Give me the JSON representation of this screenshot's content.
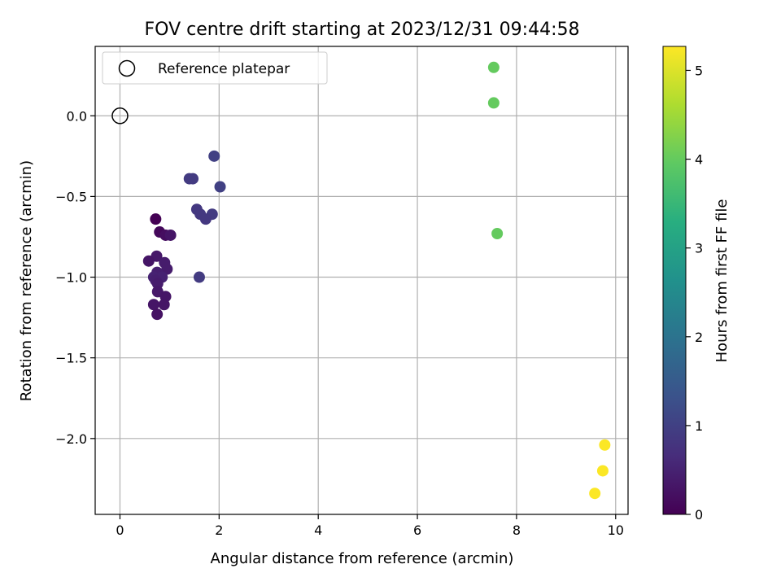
{
  "chart_data": {
    "type": "scatter",
    "title": "FOV centre drift starting at 2023/12/31 09:44:58",
    "xlabel": "Angular distance from reference (arcmin)",
    "ylabel": "Rotation from reference (arcmin)",
    "xlim": [
      -0.5,
      10.25
    ],
    "ylim": [
      -2.47,
      0.43
    ],
    "xticks": [
      0,
      2,
      4,
      6,
      8,
      10
    ],
    "yticks": [
      0.0,
      -0.5,
      -1.0,
      -1.5,
      -2.0
    ],
    "ytick_labels": [
      "0.0",
      "−0.5",
      "−1.0",
      "−1.5",
      "−2.0"
    ],
    "xtick_labels": [
      "0",
      "2",
      "4",
      "6",
      "8",
      "10"
    ],
    "grid": true,
    "legend": {
      "placement": "top-left",
      "entries": [
        {
          "label": "Reference platepar",
          "marker": "open-circle",
          "color": "#000000"
        }
      ]
    },
    "reference_point": {
      "x": 0.0,
      "y": 0.0
    },
    "colorbar": {
      "label": "Hours from first FF file",
      "colormap": "viridis",
      "min": 0,
      "max": 5.27,
      "ticks": [
        0,
        1,
        2,
        3,
        4,
        5
      ],
      "tick_labels": [
        "0",
        "1",
        "2",
        "3",
        "4",
        "5"
      ]
    },
    "points": [
      {
        "x": 0.72,
        "y": -0.64,
        "hours": 0.0
      },
      {
        "x": 0.8,
        "y": -0.72,
        "hours": 0.1
      },
      {
        "x": 0.92,
        "y": -0.74,
        "hours": 0.2
      },
      {
        "x": 1.02,
        "y": -0.74,
        "hours": 0.3
      },
      {
        "x": 0.74,
        "y": -0.87,
        "hours": 0.35
      },
      {
        "x": 0.58,
        "y": -0.9,
        "hours": 0.3
      },
      {
        "x": 0.9,
        "y": -0.91,
        "hours": 0.4
      },
      {
        "x": 0.95,
        "y": -0.95,
        "hours": 0.4
      },
      {
        "x": 0.75,
        "y": -0.97,
        "hours": 0.45
      },
      {
        "x": 0.68,
        "y": -1.0,
        "hours": 0.5
      },
      {
        "x": 0.85,
        "y": -1.0,
        "hours": 0.5
      },
      {
        "x": 0.72,
        "y": -1.02,
        "hours": 0.45
      },
      {
        "x": 0.76,
        "y": -1.04,
        "hours": 0.4
      },
      {
        "x": 0.76,
        "y": -1.09,
        "hours": 0.35
      },
      {
        "x": 0.92,
        "y": -1.12,
        "hours": 0.3
      },
      {
        "x": 0.68,
        "y": -1.17,
        "hours": 0.3
      },
      {
        "x": 0.89,
        "y": -1.17,
        "hours": 0.3
      },
      {
        "x": 0.75,
        "y": -1.23,
        "hours": 0.25
      },
      {
        "x": 1.4,
        "y": -0.39,
        "hours": 0.9
      },
      {
        "x": 1.47,
        "y": -0.39,
        "hours": 0.9
      },
      {
        "x": 1.9,
        "y": -0.25,
        "hours": 1.0
      },
      {
        "x": 2.02,
        "y": -0.44,
        "hours": 1.0
      },
      {
        "x": 1.55,
        "y": -0.58,
        "hours": 0.85
      },
      {
        "x": 1.62,
        "y": -0.61,
        "hours": 0.85
      },
      {
        "x": 1.86,
        "y": -0.61,
        "hours": 0.9
      },
      {
        "x": 1.73,
        "y": -0.64,
        "hours": 0.85
      },
      {
        "x": 1.6,
        "y": -1.0,
        "hours": 0.9
      },
      {
        "x": 7.54,
        "y": 0.3,
        "hours": 4.0
      },
      {
        "x": 7.54,
        "y": 0.08,
        "hours": 4.0
      },
      {
        "x": 7.61,
        "y": -0.73,
        "hours": 4.0
      },
      {
        "x": 9.78,
        "y": -2.04,
        "hours": 5.25
      },
      {
        "x": 9.74,
        "y": -2.2,
        "hours": 5.25
      },
      {
        "x": 9.58,
        "y": -2.34,
        "hours": 5.25
      }
    ]
  }
}
